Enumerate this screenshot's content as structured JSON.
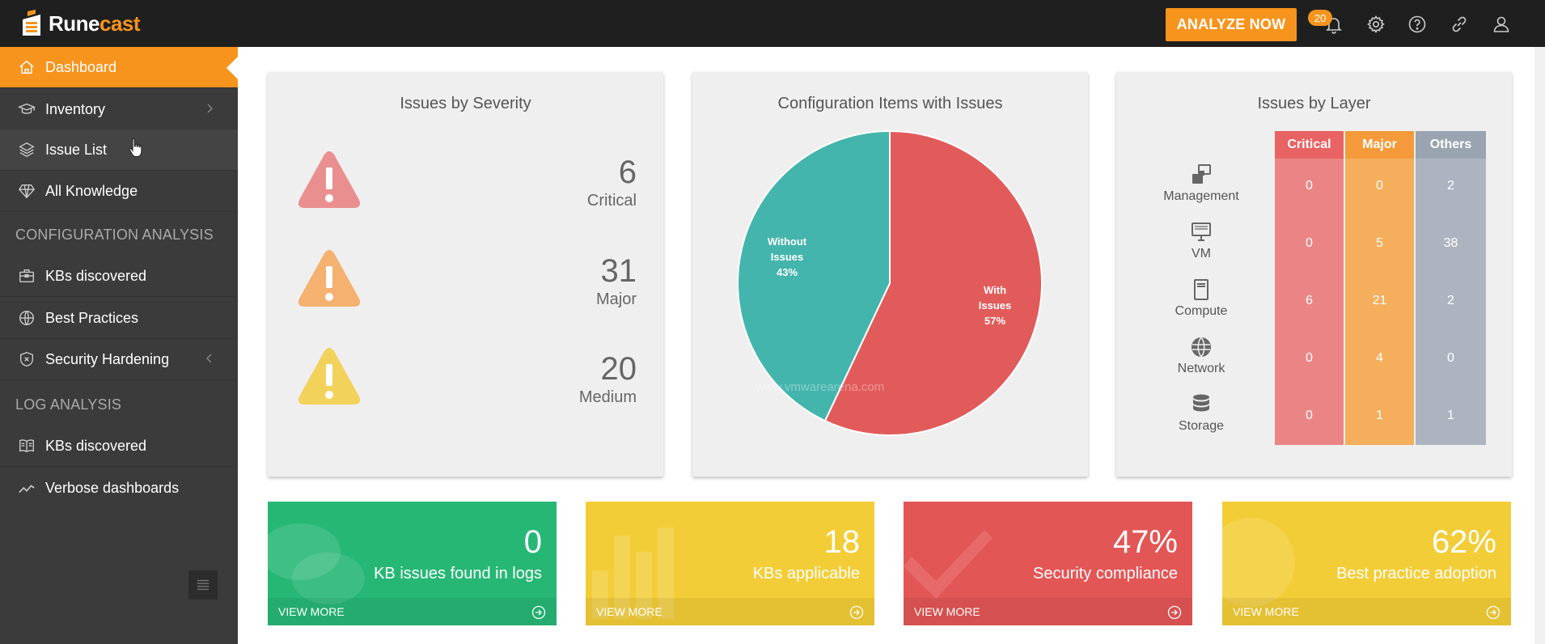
{
  "app": {
    "logo_prefix": "Rune",
    "logo_suffix": "cast"
  },
  "topbar": {
    "analyze_label": "ANALYZE NOW",
    "notification_count": "20",
    "icons": [
      "bell-icon",
      "gear-icon",
      "help-icon",
      "link-icon",
      "user-icon"
    ]
  },
  "sidebar": {
    "items": [
      {
        "label": "Dashboard",
        "icon": "home-icon"
      },
      {
        "label": "Inventory",
        "icon": "graduation-cap-icon"
      },
      {
        "label": "Issue List",
        "icon": "layers-icon"
      },
      {
        "label": "All Knowledge",
        "icon": "diamond-icon"
      },
      {
        "label": "KBs discovered",
        "icon": "briefcase-icon"
      },
      {
        "label": "Best Practices",
        "icon": "globe-icon"
      },
      {
        "label": "Security Hardening",
        "icon": "shield-icon"
      },
      {
        "label": "KBs discovered",
        "icon": "book-icon"
      },
      {
        "label": "Verbose dashboards",
        "icon": "trend-icon"
      }
    ],
    "sections": {
      "config": "CONFIGURATION ANALYSIS",
      "log": "LOG ANALYSIS"
    }
  },
  "severity": {
    "title": "Issues by Severity",
    "rows": [
      {
        "count": "6",
        "label": "Critical",
        "color": "#ea8f8f"
      },
      {
        "count": "31",
        "label": "Major",
        "color": "#f4b16f"
      },
      {
        "count": "20",
        "label": "Medium",
        "color": "#f3d25c"
      }
    ]
  },
  "config_items": {
    "title": "Configuration Items with Issues",
    "watermark": "www.vmwarearena.com",
    "chart_data": {
      "type": "pie",
      "slices": [
        {
          "label_line1": "With",
          "label_line2": "Issues",
          "value": 57,
          "pct": "57%",
          "color": "#e25b5b"
        },
        {
          "label_line1": "Without",
          "label_line2": "Issues",
          "value": 43,
          "pct": "43%",
          "color": "#44b5ac"
        }
      ]
    }
  },
  "layers": {
    "title": "Issues by Layer",
    "columns": [
      {
        "label": "Critical",
        "head_color": "#e86363",
        "col_color": "#eb8585"
      },
      {
        "label": "Major",
        "head_color": "#f49a3a",
        "col_color": "#f4ae5c"
      },
      {
        "label": "Others",
        "head_color": "#9aa3b0",
        "col_color": "#adb4c0"
      }
    ],
    "rows": [
      {
        "name": "Management",
        "icon": "management-icon",
        "values": [
          "0",
          "0",
          "2"
        ]
      },
      {
        "name": "VM",
        "icon": "monitor-icon",
        "values": [
          "0",
          "5",
          "38"
        ]
      },
      {
        "name": "Compute",
        "icon": "server-icon",
        "values": [
          "6",
          "21",
          "2"
        ]
      },
      {
        "name": "Network",
        "icon": "network-globe-icon",
        "values": [
          "0",
          "4",
          "0"
        ]
      },
      {
        "name": "Storage",
        "icon": "database-icon",
        "values": [
          "0",
          "1",
          "1"
        ]
      }
    ]
  },
  "tiles": [
    {
      "value": "0",
      "label": "KB issues found in logs",
      "footer": "VIEW MORE",
      "color": "#26b775"
    },
    {
      "value": "18",
      "label": "KBs applicable",
      "footer": "VIEW MORE",
      "color": "#f3cd37"
    },
    {
      "value": "47%",
      "label": "Security compliance",
      "footer": "VIEW MORE",
      "color": "#e35656"
    },
    {
      "value": "62%",
      "label": "Best practice adoption",
      "footer": "VIEW MORE",
      "color": "#f3cd37"
    }
  ]
}
